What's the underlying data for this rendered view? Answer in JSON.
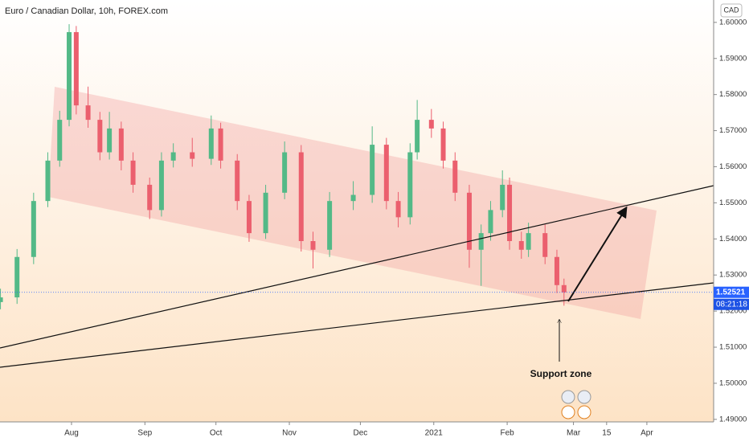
{
  "chart_data": {
    "type": "candlestick",
    "title": "Euro / Canadian Dollar, 10h, FOREX.com",
    "currency": "CAD",
    "annotation": "Support zone",
    "countdown": "08:21:18",
    "last_price": 1.52521,
    "up_color": "#53b987",
    "down_color": "#eb5f6e",
    "x": [
      -30,
      -23,
      -16,
      -10,
      -5,
      -1,
      2,
      7,
      12,
      16,
      21,
      26,
      33,
      38,
      43,
      51,
      59,
      63,
      70,
      75,
      82,
      90,
      97,
      102,
      109,
      119,
      127,
      133,
      138,
      143,
      146,
      152,
      157,
      162,
      168,
      173,
      177,
      182,
      185,
      190,
      193,
      200,
      205,
      208
    ],
    "open": [
      1.5225,
      1.5238,
      1.535,
      1.5505,
      1.5617,
      1.573,
      1.5973,
      1.577,
      1.573,
      1.564,
      1.5706,
      1.5617,
      1.555,
      1.548,
      1.5617,
      1.564,
      1.5622,
      1.5706,
      1.5617,
      1.5505,
      1.5416,
      1.5528,
      1.564,
      1.5394,
      1.537,
      1.5505,
      1.5522,
      1.5661,
      1.5505,
      1.546,
      1.564,
      1.573,
      1.5706,
      1.5617,
      1.5528,
      1.537,
      1.5416,
      1.548,
      1.555,
      1.5394,
      1.537,
      1.5416,
      1.535,
      1.5272
    ],
    "high": [
      1.5262,
      1.5372,
      1.5528,
      1.564,
      1.5755,
      1.5995,
      1.599,
      1.5822,
      1.5752,
      1.5752,
      1.5725,
      1.564,
      1.557,
      1.564,
      1.5665,
      1.568,
      1.5742,
      1.5722,
      1.5635,
      1.5522,
      1.555,
      1.567,
      1.566,
      1.542,
      1.553,
      1.556,
      1.5712,
      1.568,
      1.553,
      1.5665,
      1.5785,
      1.576,
      1.5725,
      1.564,
      1.555,
      1.544,
      1.5505,
      1.559,
      1.557,
      1.542,
      1.5445,
      1.544,
      1.537,
      1.529
    ],
    "low": [
      1.5205,
      1.522,
      1.533,
      1.5488,
      1.56,
      1.5712,
      1.5745,
      1.5708,
      1.5618,
      1.562,
      1.559,
      1.5528,
      1.5455,
      1.5462,
      1.5598,
      1.56,
      1.5605,
      1.5595,
      1.548,
      1.5392,
      1.54,
      1.551,
      1.5365,
      1.5318,
      1.535,
      1.548,
      1.55,
      1.5482,
      1.5432,
      1.544,
      1.562,
      1.568,
      1.5595,
      1.5505,
      1.532,
      1.527,
      1.5395,
      1.546,
      1.537,
      1.5345,
      1.535,
      1.533,
      1.525,
      1.5215
    ],
    "close": [
      1.5238,
      1.535,
      1.5505,
      1.5617,
      1.573,
      1.5973,
      1.577,
      1.573,
      1.564,
      1.5706,
      1.5617,
      1.555,
      1.548,
      1.5617,
      1.564,
      1.5622,
      1.5706,
      1.5617,
      1.5505,
      1.5416,
      1.5528,
      1.564,
      1.5394,
      1.537,
      1.5505,
      1.5522,
      1.5661,
      1.5505,
      1.546,
      1.564,
      1.573,
      1.5706,
      1.5617,
      1.5528,
      1.537,
      1.5416,
      1.548,
      1.555,
      1.5394,
      1.537,
      1.5416,
      1.535,
      1.5272,
      1.5252
    ],
    "xlim": [
      -30.2,
      271.2
    ],
    "ylim": [
      1.4893,
      1.6062
    ],
    "xticks": [
      {
        "value": 0,
        "label": "Aug"
      },
      {
        "value": 31,
        "label": "Sep"
      },
      {
        "value": 61,
        "label": "Oct"
      },
      {
        "value": 92,
        "label": "Nov"
      },
      {
        "value": 122,
        "label": "Dec"
      },
      {
        "value": 153,
        "label": "2021"
      },
      {
        "value": 184,
        "label": "Feb"
      },
      {
        "value": 212,
        "label": "Mar"
      },
      {
        "value": 226,
        "label": "15"
      },
      {
        "value": 243,
        "label": "Apr"
      }
    ],
    "yticks": [
      {
        "value": 1.49,
        "label": "1.49000"
      },
      {
        "value": 1.5,
        "label": "1.50000"
      },
      {
        "value": 1.51,
        "label": "1.51000"
      },
      {
        "value": 1.52,
        "label": "1.52000"
      },
      {
        "value": 1.53,
        "label": "1.53000"
      },
      {
        "value": 1.54,
        "label": "1.54000"
      },
      {
        "value": 1.55,
        "label": "1.55000"
      },
      {
        "value": 1.56,
        "label": "1.56000"
      },
      {
        "value": 1.57,
        "label": "1.57000"
      },
      {
        "value": 1.58,
        "label": "1.58000"
      },
      {
        "value": 1.59,
        "label": "1.59000"
      },
      {
        "value": 1.6,
        "label": "1.60000"
      }
    ]
  }
}
